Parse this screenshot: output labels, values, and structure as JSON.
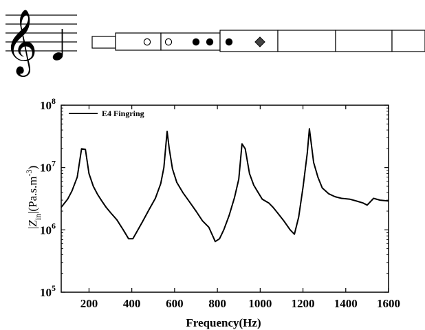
{
  "chart_data": {
    "type": "line",
    "xlabel": "Frequency(Hz)",
    "ylabel": "|Z_in|(Pa.s.m^-3)",
    "ylabel_parts": {
      "bar_left": "|",
      "symbol": "Z",
      "subscript": "in",
      "bar_right": "|",
      "units": "(Pa.s.m",
      "exponent": "-3",
      "close": ")"
    },
    "xlim": [
      70,
      1600
    ],
    "ylim": [
      100000,
      100000000
    ],
    "yscale": "log",
    "x_ticks": [
      200,
      400,
      600,
      800,
      1000,
      1200,
      1400,
      1600
    ],
    "x_tick_labels": [
      "200",
      "400",
      "600",
      "800",
      "1000",
      "1200",
      "1400",
      "1600"
    ],
    "y_ticks": [
      100000,
      1000000,
      10000000,
      100000000
    ],
    "y_tick_labels": [
      {
        "base": "10",
        "exp": "5"
      },
      {
        "base": "10",
        "exp": "6"
      },
      {
        "base": "10",
        "exp": "7"
      },
      {
        "base": "10",
        "exp": "8"
      }
    ],
    "grid": false,
    "legend_position": "top-left",
    "series": [
      {
        "name": "E4 Fingring",
        "color": "#000000",
        "points": [
          [
            70,
            2300000
          ],
          [
            100,
            3100000
          ],
          [
            120,
            4200000
          ],
          [
            145,
            7000000
          ],
          [
            165,
            20000000
          ],
          [
            183,
            19500000
          ],
          [
            200,
            8000000
          ],
          [
            220,
            5000000
          ],
          [
            240,
            3700000
          ],
          [
            260,
            2900000
          ],
          [
            280,
            2300000
          ],
          [
            300,
            1900000
          ],
          [
            330,
            1450000
          ],
          [
            360,
            1000000
          ],
          [
            385,
            720000
          ],
          [
            405,
            720000
          ],
          [
            425,
            950000
          ],
          [
            450,
            1350000
          ],
          [
            480,
            2100000
          ],
          [
            510,
            3200000
          ],
          [
            535,
            5500000
          ],
          [
            550,
            10000000
          ],
          [
            565,
            38000000
          ],
          [
            575,
            20000000
          ],
          [
            590,
            9500000
          ],
          [
            610,
            5800000
          ],
          [
            640,
            3900000
          ],
          [
            670,
            2800000
          ],
          [
            700,
            2000000
          ],
          [
            730,
            1400000
          ],
          [
            760,
            1100000
          ],
          [
            790,
            650000
          ],
          [
            810,
            720000
          ],
          [
            830,
            1000000
          ],
          [
            855,
            1700000
          ],
          [
            880,
            3300000
          ],
          [
            900,
            6500000
          ],
          [
            915,
            24000000
          ],
          [
            930,
            20000000
          ],
          [
            950,
            8000000
          ],
          [
            970,
            5200000
          ],
          [
            990,
            4000000
          ],
          [
            1010,
            3100000
          ],
          [
            1040,
            2700000
          ],
          [
            1060,
            2300000
          ],
          [
            1080,
            1900000
          ],
          [
            1110,
            1400000
          ],
          [
            1140,
            1000000
          ],
          [
            1160,
            850000
          ],
          [
            1180,
            1600000
          ],
          [
            1200,
            4800000
          ],
          [
            1220,
            17000000
          ],
          [
            1230,
            42000000
          ],
          [
            1250,
            12000000
          ],
          [
            1270,
            7000000
          ],
          [
            1290,
            4700000
          ],
          [
            1320,
            3800000
          ],
          [
            1350,
            3400000
          ],
          [
            1380,
            3200000
          ],
          [
            1420,
            3100000
          ],
          [
            1450,
            2900000
          ],
          [
            1480,
            2700000
          ],
          [
            1500,
            2500000
          ],
          [
            1530,
            3200000
          ],
          [
            1560,
            3000000
          ],
          [
            1600,
            2900000
          ]
        ]
      }
    ]
  },
  "notation": {
    "clef": "𝄞",
    "staff_lines": 5,
    "note": "E4",
    "note_duration": "quarter"
  },
  "instrument": {
    "holes": [
      {
        "kind": "open"
      },
      {
        "kind": "open"
      },
      {
        "kind": "closed"
      },
      {
        "kind": "closed"
      },
      {
        "kind": "closed"
      },
      {
        "kind": "key"
      }
    ]
  }
}
